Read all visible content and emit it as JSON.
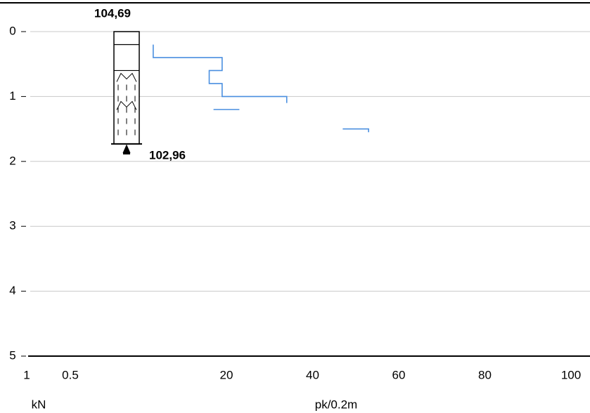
{
  "chart_data": {
    "type": "line",
    "x_label": "pk/0.2m",
    "x2_label": "kN",
    "top_level_label": "104,69",
    "bottom_level_label": "102,96",
    "ylim": [
      0,
      5
    ],
    "yticks": [
      0,
      1,
      2,
      3,
      4,
      5
    ],
    "xlim": [
      0,
      104
    ],
    "xticks": [
      20,
      40,
      60,
      80,
      100
    ],
    "x2lim": [
      1,
      0
    ],
    "x2ticks": [
      1,
      0.5
    ],
    "grid": true,
    "column_layer_depths": [
      0,
      0.2,
      0.6,
      1.73
    ],
    "series": [
      {
        "color": "#4a8fe0",
        "x": [
          3,
          3,
          19,
          19,
          16,
          16,
          19,
          19,
          34,
          34,
          null,
          17,
          23,
          null,
          47,
          53,
          53
        ],
        "values": [
          0.2,
          0.4,
          0.4,
          0.6,
          0.6,
          0.8,
          0.8,
          1.0,
          1.0,
          1.1,
          null,
          1.2,
          1.2,
          null,
          1.5,
          1.5,
          1.55
        ]
      }
    ]
  }
}
